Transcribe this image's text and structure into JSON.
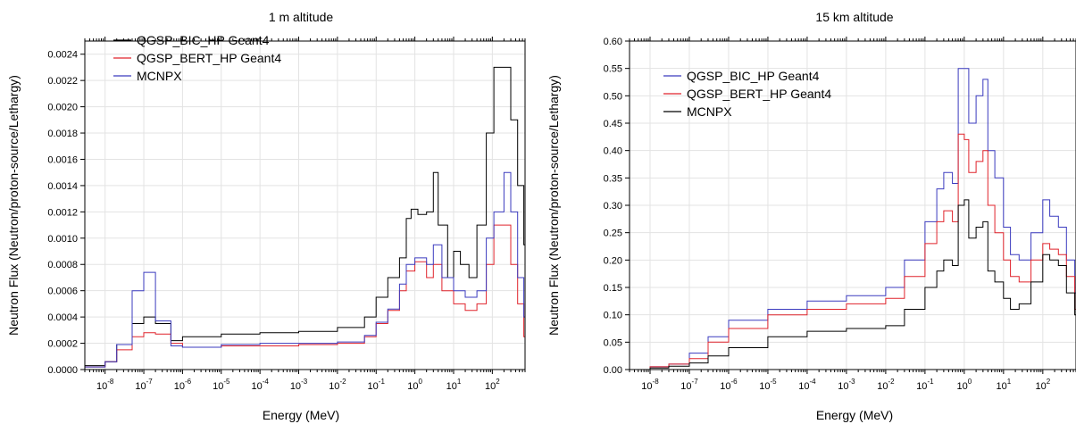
{
  "chart_data": [
    {
      "type": "line",
      "step": true,
      "title": "1 m altitude",
      "xlabel": "Energy (MeV)",
      "ylabel": "Neutron Flux (Neutron/proton-source/Lethargy)",
      "xscale": "log",
      "xlim": [
        3e-09,
        700
      ],
      "ylim": [
        0,
        0.0025
      ],
      "yticks": [
        "0.0000",
        "0.0002",
        "0.0004",
        "0.0006",
        "0.0008",
        "0.0010",
        "0.0012",
        "0.0014",
        "0.0016",
        "0.0018",
        "0.0020",
        "0.0022",
        "0.0024"
      ],
      "xticks": [
        {
          "base": "10",
          "exp": "-8"
        },
        {
          "base": "10",
          "exp": "-7"
        },
        {
          "base": "10",
          "exp": "-6"
        },
        {
          "base": "10",
          "exp": "-5"
        },
        {
          "base": "10",
          "exp": "-4"
        },
        {
          "base": "10",
          "exp": "-3"
        },
        {
          "base": "10",
          "exp": "-2"
        },
        {
          "base": "10",
          "exp": "-1"
        },
        {
          "base": "10",
          "exp": "0"
        },
        {
          "base": "10",
          "exp": "1"
        },
        {
          "base": "10",
          "exp": "2"
        }
      ],
      "grid": true,
      "legend_position": "top-left",
      "series": [
        {
          "name": "QGSP_BIC_HP Geant4",
          "color": "#000000",
          "points": [
            [
              3e-09,
              3e-05
            ],
            [
              1e-08,
              6e-05
            ],
            [
              2e-08,
              0.00019
            ],
            [
              5e-08,
              0.00035
            ],
            [
              1e-07,
              0.0004
            ],
            [
              2e-07,
              0.00035
            ],
            [
              5e-07,
              0.00022
            ],
            [
              1e-06,
              0.00025
            ],
            [
              1e-05,
              0.00027
            ],
            [
              0.0001,
              0.00028
            ],
            [
              0.001,
              0.00029
            ],
            [
              0.01,
              0.00032
            ],
            [
              0.05,
              0.0004
            ],
            [
              0.1,
              0.00055
            ],
            [
              0.2,
              0.0007
            ],
            [
              0.4,
              0.00085
            ],
            [
              0.6,
              0.00115
            ],
            [
              0.8,
              0.00122
            ],
            [
              1.2,
              0.00118
            ],
            [
              2,
              0.0012
            ],
            [
              3,
              0.0015
            ],
            [
              4,
              0.0011
            ],
            [
              7,
              0.0007
            ],
            [
              10,
              0.0009
            ],
            [
              15,
              0.0008
            ],
            [
              25,
              0.0007
            ],
            [
              40,
              0.0011
            ],
            [
              70,
              0.0018
            ],
            [
              110,
              0.0023
            ],
            [
              180,
              0.0023
            ],
            [
              300,
              0.0019
            ],
            [
              450,
              0.0014
            ],
            [
              650,
              0.00095
            ]
          ]
        },
        {
          "name": "QGSP_BERT_HP Geant4",
          "color": "#e0232b",
          "points": [
            [
              3e-09,
              2e-05
            ],
            [
              1e-08,
              6e-05
            ],
            [
              2e-08,
              0.00015
            ],
            [
              5e-08,
              0.00025
            ],
            [
              1e-07,
              0.00028
            ],
            [
              2e-07,
              0.00027
            ],
            [
              5e-07,
              0.0002
            ],
            [
              1e-06,
              0.00017
            ],
            [
              1e-05,
              0.00018
            ],
            [
              0.0001,
              0.00018
            ],
            [
              0.001,
              0.00019
            ],
            [
              0.01,
              0.0002
            ],
            [
              0.05,
              0.00025
            ],
            [
              0.1,
              0.00035
            ],
            [
              0.2,
              0.00045
            ],
            [
              0.4,
              0.0006
            ],
            [
              0.6,
              0.00075
            ],
            [
              1,
              0.00082
            ],
            [
              2,
              0.0007
            ],
            [
              3,
              0.0008
            ],
            [
              5,
              0.0006
            ],
            [
              10,
              0.0005
            ],
            [
              20,
              0.00045
            ],
            [
              40,
              0.0005
            ],
            [
              70,
              0.0008
            ],
            [
              110,
              0.0011
            ],
            [
              200,
              0.0011
            ],
            [
              300,
              0.0008
            ],
            [
              450,
              0.0005
            ],
            [
              650,
              0.00025
            ]
          ]
        },
        {
          "name": "MCNPX",
          "color": "#3b3bbf",
          "points": [
            [
              3e-09,
              2e-05
            ],
            [
              1e-08,
              6e-05
            ],
            [
              2e-08,
              0.00019
            ],
            [
              5e-08,
              0.0006
            ],
            [
              1e-07,
              0.00074
            ],
            [
              2e-07,
              0.00037
            ],
            [
              5e-07,
              0.00018
            ],
            [
              1e-06,
              0.00017
            ],
            [
              1e-05,
              0.00019
            ],
            [
              0.0001,
              0.0002
            ],
            [
              0.001,
              0.0002
            ],
            [
              0.01,
              0.00021
            ],
            [
              0.05,
              0.00026
            ],
            [
              0.1,
              0.00036
            ],
            [
              0.2,
              0.00046
            ],
            [
              0.4,
              0.00065
            ],
            [
              0.6,
              0.0008
            ],
            [
              1,
              0.00085
            ],
            [
              2,
              0.0008
            ],
            [
              3,
              0.00095
            ],
            [
              5,
              0.0007
            ],
            [
              10,
              0.0006
            ],
            [
              20,
              0.00055
            ],
            [
              40,
              0.0006
            ],
            [
              70,
              0.001
            ],
            [
              110,
              0.0012
            ],
            [
              200,
              0.0015
            ],
            [
              300,
              0.0012
            ],
            [
              450,
              0.0007
            ],
            [
              650,
              0.0004
            ]
          ]
        }
      ]
    },
    {
      "type": "line",
      "step": true,
      "title": "15 km altitude",
      "xlabel": "Energy (MeV)",
      "ylabel": "Neutron Flux (Neutron/proton-source/Lethargy)",
      "xscale": "log",
      "xlim": [
        3e-09,
        700
      ],
      "ylim": [
        0,
        0.6
      ],
      "yticks": [
        "0.00",
        "0.05",
        "0.10",
        "0.15",
        "0.20",
        "0.25",
        "0.30",
        "0.35",
        "0.40",
        "0.45",
        "0.50",
        "0.55",
        "0.60"
      ],
      "xticks": [
        {
          "base": "10",
          "exp": "-8"
        },
        {
          "base": "10",
          "exp": "-7"
        },
        {
          "base": "10",
          "exp": "-6"
        },
        {
          "base": "10",
          "exp": "-5"
        },
        {
          "base": "10",
          "exp": "-4"
        },
        {
          "base": "10",
          "exp": "-3"
        },
        {
          "base": "10",
          "exp": "-2"
        },
        {
          "base": "10",
          "exp": "-1"
        },
        {
          "base": "10",
          "exp": "0"
        },
        {
          "base": "10",
          "exp": "1"
        },
        {
          "base": "10",
          "exp": "2"
        }
      ],
      "grid": true,
      "legend_position": "top-left",
      "series": [
        {
          "name": "QGSP_BIC_HP Geant4",
          "color": "#3b3bbf",
          "points": [
            [
              3e-09,
              0.0
            ],
            [
              1e-08,
              0.005
            ],
            [
              3e-08,
              0.01
            ],
            [
              1e-07,
              0.03
            ],
            [
              3e-07,
              0.06
            ],
            [
              1e-06,
              0.09
            ],
            [
              1e-05,
              0.11
            ],
            [
              0.0001,
              0.125
            ],
            [
              0.001,
              0.135
            ],
            [
              0.01,
              0.15
            ],
            [
              0.03,
              0.2
            ],
            [
              0.1,
              0.27
            ],
            [
              0.2,
              0.33
            ],
            [
              0.3,
              0.36
            ],
            [
              0.5,
              0.34
            ],
            [
              0.7,
              0.55
            ],
            [
              1,
              0.55
            ],
            [
              1.3,
              0.45
            ],
            [
              2,
              0.5
            ],
            [
              3,
              0.53
            ],
            [
              4,
              0.4
            ],
            [
              6,
              0.35
            ],
            [
              10,
              0.26
            ],
            [
              15,
              0.21
            ],
            [
              25,
              0.2
            ],
            [
              50,
              0.25
            ],
            [
              100,
              0.31
            ],
            [
              150,
              0.28
            ],
            [
              250,
              0.26
            ],
            [
              400,
              0.2
            ],
            [
              650,
              0.14
            ]
          ]
        },
        {
          "name": "QGSP_BERT_HP Geant4",
          "color": "#e0232b",
          "points": [
            [
              3e-09,
              0.0
            ],
            [
              1e-08,
              0.005
            ],
            [
              3e-08,
              0.01
            ],
            [
              1e-07,
              0.02
            ],
            [
              3e-07,
              0.05
            ],
            [
              1e-06,
              0.075
            ],
            [
              1e-05,
              0.1
            ],
            [
              0.0001,
              0.11
            ],
            [
              0.001,
              0.12
            ],
            [
              0.01,
              0.13
            ],
            [
              0.03,
              0.17
            ],
            [
              0.1,
              0.23
            ],
            [
              0.2,
              0.27
            ],
            [
              0.3,
              0.29
            ],
            [
              0.5,
              0.27
            ],
            [
              0.7,
              0.43
            ],
            [
              1,
              0.42
            ],
            [
              1.3,
              0.36
            ],
            [
              2,
              0.38
            ],
            [
              3,
              0.4
            ],
            [
              4,
              0.3
            ],
            [
              6,
              0.25
            ],
            [
              10,
              0.2
            ],
            [
              15,
              0.17
            ],
            [
              25,
              0.16
            ],
            [
              50,
              0.2
            ],
            [
              100,
              0.23
            ],
            [
              150,
              0.22
            ],
            [
              250,
              0.21
            ],
            [
              400,
              0.17
            ],
            [
              650,
              0.11
            ]
          ]
        },
        {
          "name": "MCNPX",
          "color": "#000000",
          "points": [
            [
              3e-09,
              0.0
            ],
            [
              1e-08,
              0.003
            ],
            [
              3e-08,
              0.006
            ],
            [
              1e-07,
              0.012
            ],
            [
              3e-07,
              0.025
            ],
            [
              1e-06,
              0.04
            ],
            [
              1e-05,
              0.06
            ],
            [
              0.0001,
              0.07
            ],
            [
              0.001,
              0.075
            ],
            [
              0.01,
              0.08
            ],
            [
              0.03,
              0.11
            ],
            [
              0.1,
              0.15
            ],
            [
              0.2,
              0.18
            ],
            [
              0.3,
              0.2
            ],
            [
              0.5,
              0.19
            ],
            [
              0.7,
              0.3
            ],
            [
              1,
              0.31
            ],
            [
              1.3,
              0.24
            ],
            [
              2,
              0.26
            ],
            [
              3,
              0.27
            ],
            [
              4,
              0.18
            ],
            [
              6,
              0.16
            ],
            [
              10,
              0.13
            ],
            [
              15,
              0.11
            ],
            [
              25,
              0.12
            ],
            [
              50,
              0.16
            ],
            [
              100,
              0.21
            ],
            [
              150,
              0.2
            ],
            [
              250,
              0.19
            ],
            [
              400,
              0.14
            ],
            [
              650,
              0.1
            ]
          ]
        }
      ]
    }
  ]
}
